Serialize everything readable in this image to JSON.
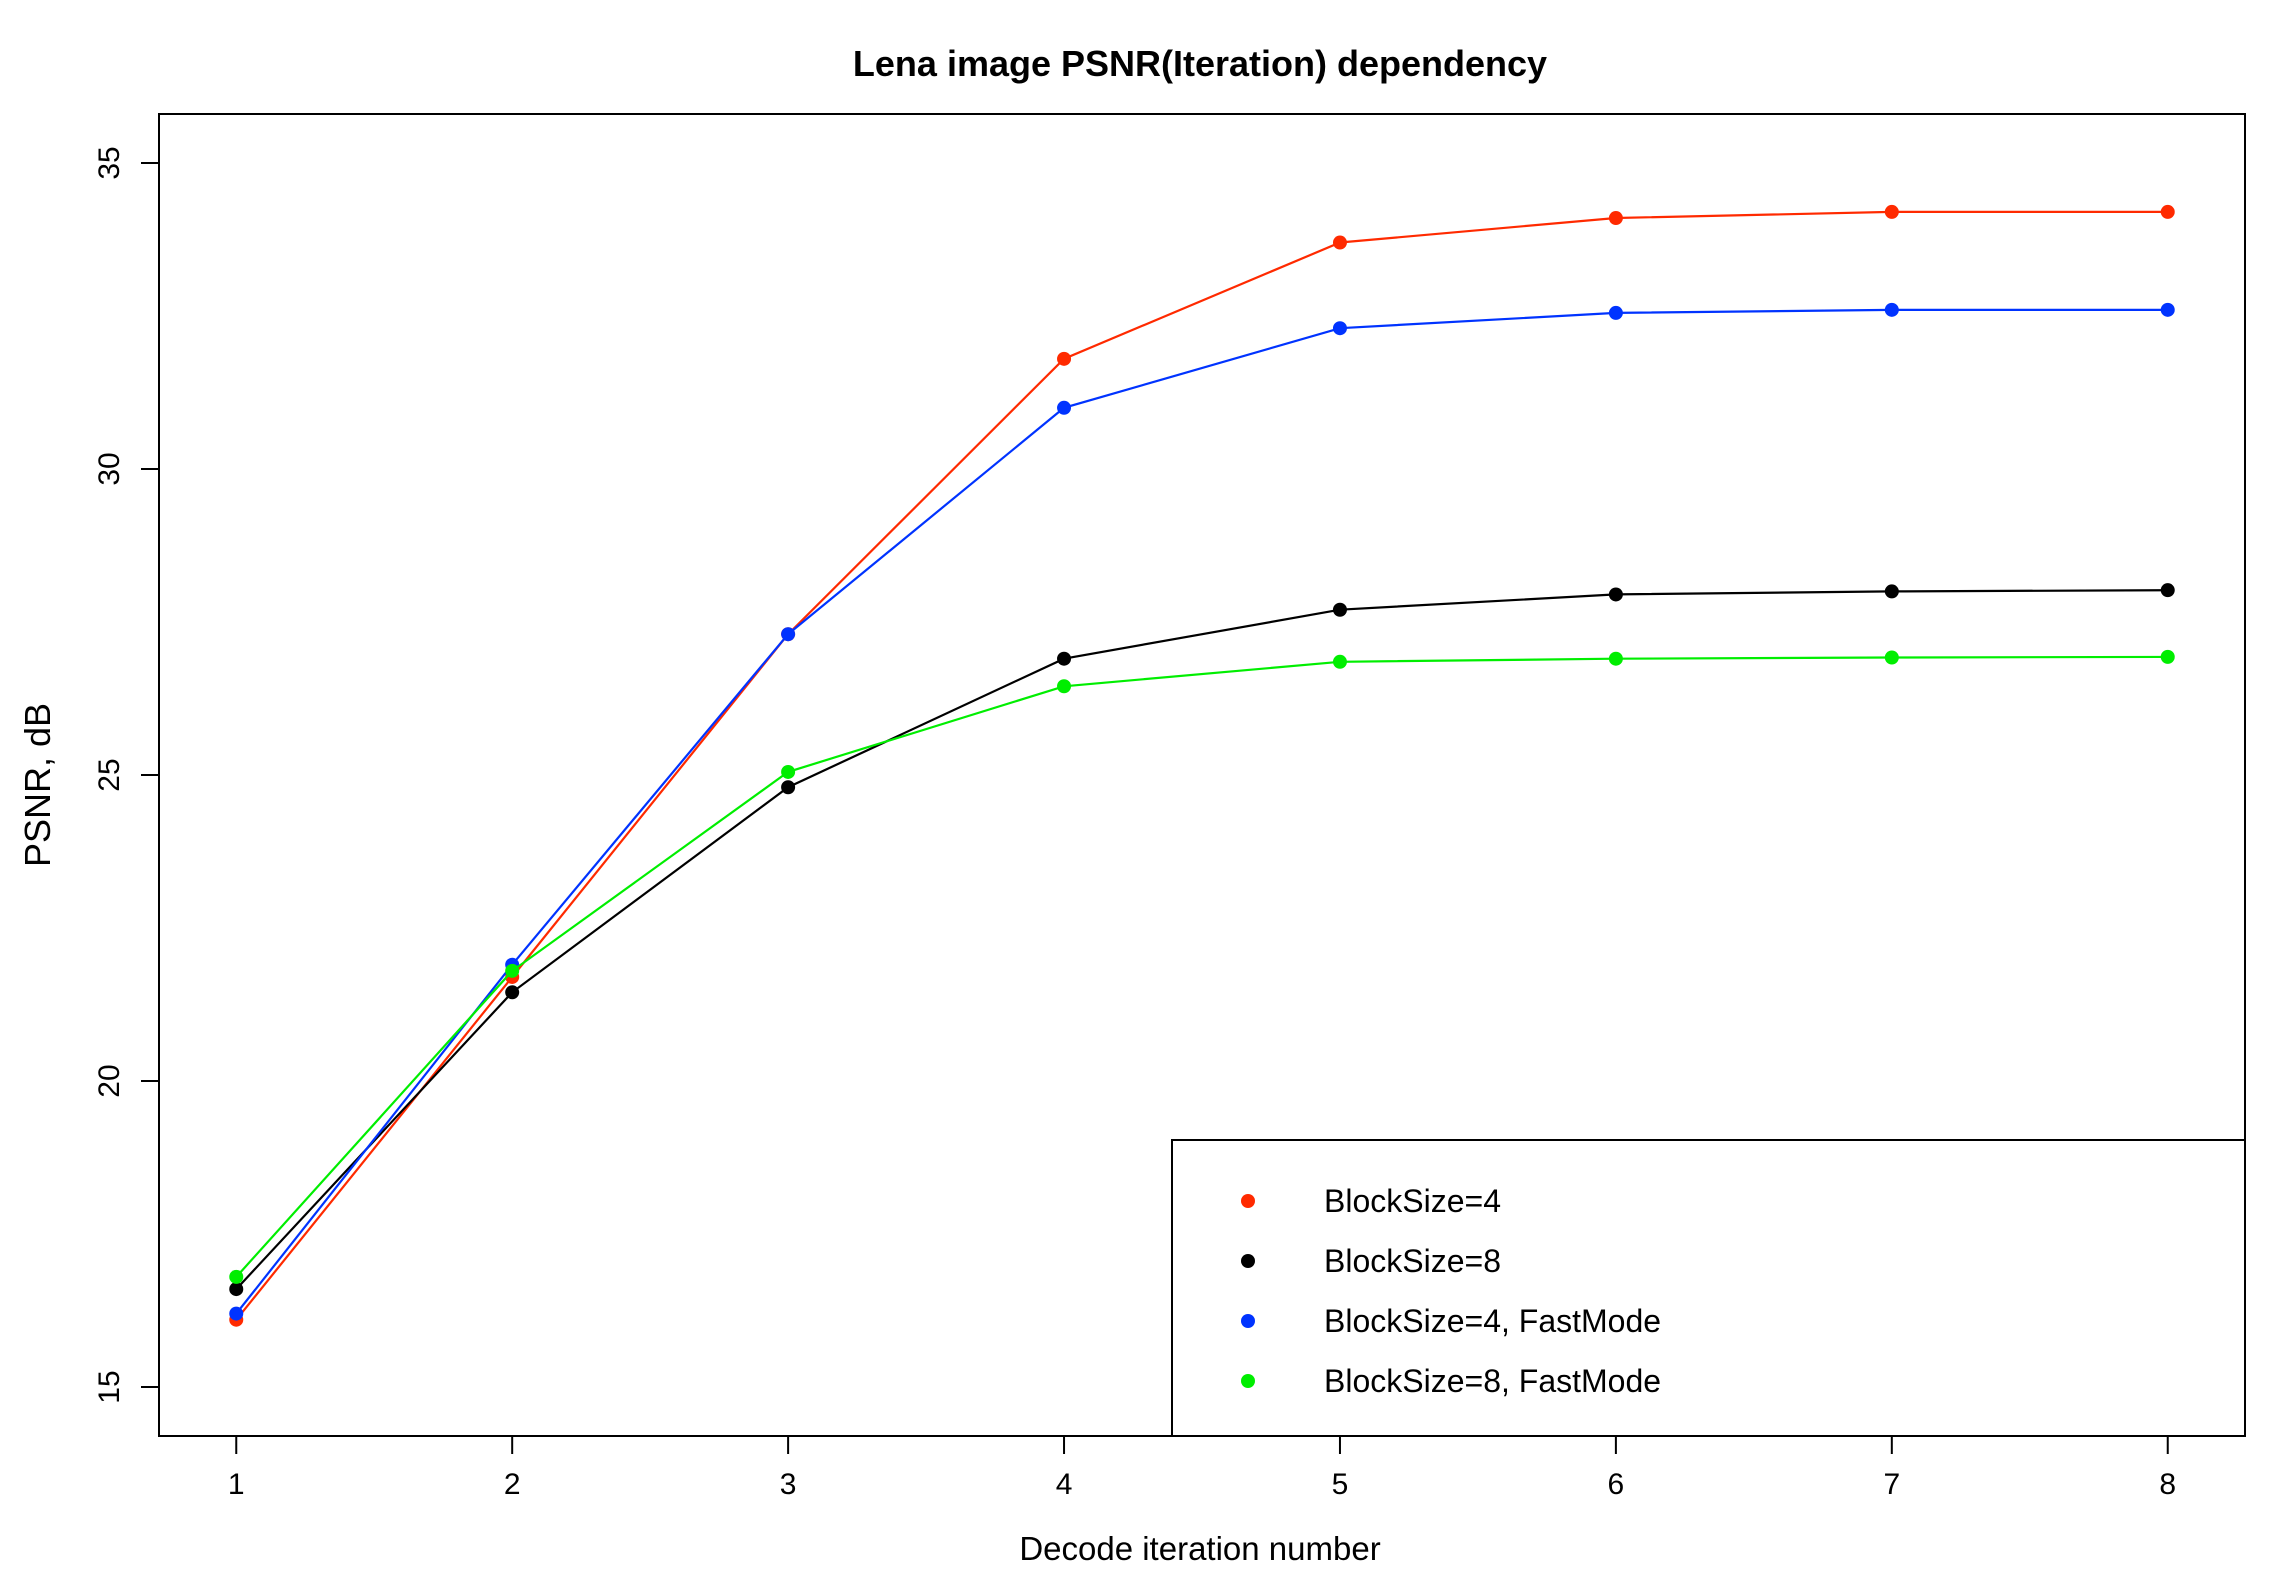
{
  "chart_data": {
    "type": "line",
    "title": "Lena image PSNR(Iteration) dependency",
    "xlabel": "Decode iteration number",
    "ylabel": "PSNR, dB",
    "x": [
      1,
      2,
      3,
      4,
      5,
      6,
      7,
      8
    ],
    "xlim": [
      0.72,
      8.28
    ],
    "ylim": [
      14.2,
      35.8
    ],
    "xticks": [
      "1",
      "2",
      "3",
      "4",
      "5",
      "6",
      "7",
      "8"
    ],
    "yticks": [
      "15",
      "20",
      "25",
      "30",
      "35"
    ],
    "grid": false,
    "legend_position": "bottom-right",
    "series": [
      {
        "name": "BlockSize=4",
        "color": "#ff2a00",
        "values": [
          16.1,
          21.7,
          27.3,
          31.8,
          33.7,
          34.1,
          34.2,
          34.2
        ]
      },
      {
        "name": "BlockSize=8",
        "color": "#000000",
        "values": [
          16.6,
          21.45,
          24.8,
          26.9,
          27.7,
          27.95,
          28.0,
          28.02
        ]
      },
      {
        "name": "BlockSize=4, FastMode",
        "color": "#0033ff",
        "values": [
          16.2,
          21.9,
          27.3,
          31.0,
          32.3,
          32.55,
          32.6,
          32.6
        ]
      },
      {
        "name": "BlockSize=8, FastMode",
        "color": "#00ee00",
        "values": [
          16.8,
          21.8,
          25.05,
          26.45,
          26.85,
          26.9,
          26.92,
          26.93
        ]
      }
    ]
  }
}
